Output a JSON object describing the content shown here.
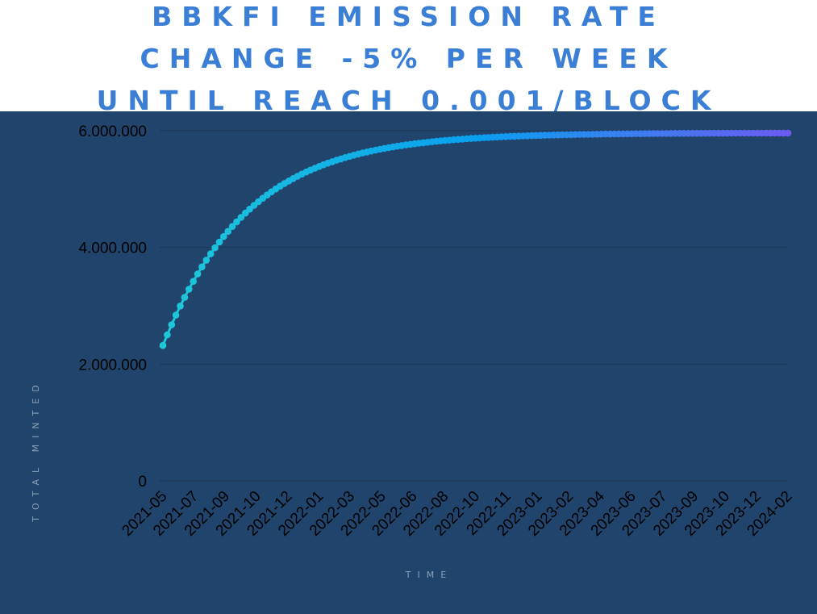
{
  "title": {
    "lines": [
      "BBKFI EMISSION RATE",
      "CHANGE -5% PER WEEK",
      "UNTIL REACH 0.001/BLOCK"
    ]
  },
  "colors": {
    "background": "#21446c",
    "title": "#3a7fd5",
    "series_start": "#1ec8d8",
    "series_mid": "#0aa0f0",
    "series_end": "#6a5cf0",
    "gridline": "#1a3555"
  },
  "chart_data": {
    "type": "line",
    "title": "BBKFI EMISSION RATE CHANGE -5% PER WEEK UNTIL REACH 0.001/BLOCK",
    "xlabel": "TIME",
    "ylabel": "TOTAL MINTED",
    "ylim": [
      0,
      6000000
    ],
    "y_ticks": [
      0,
      2000000,
      4000000,
      6000000
    ],
    "y_tick_labels": [
      "0",
      "2.000.000",
      "4.000.000",
      "6.000.000"
    ],
    "x_tick_labels": [
      "2021-05",
      "2021-07",
      "2021-09",
      "2021-10",
      "2021-12",
      "2022-01",
      "2022-03",
      "2022-05",
      "2022-06",
      "2022-08",
      "2022-10",
      "2022-11",
      "2023-01",
      "2023-02",
      "2023-04",
      "2023-06",
      "2023-07",
      "2023-09",
      "2023-10",
      "2023-12",
      "2024-02"
    ],
    "grid": true,
    "markers": true,
    "series": [
      {
        "x_start": "2021-05-17",
        "x_end": "2024-02-19",
        "interval": "weekly",
        "points": 145,
        "y_start": 2320000,
        "y_end": 5960000,
        "weekly_decay": 0.05
      }
    ]
  }
}
